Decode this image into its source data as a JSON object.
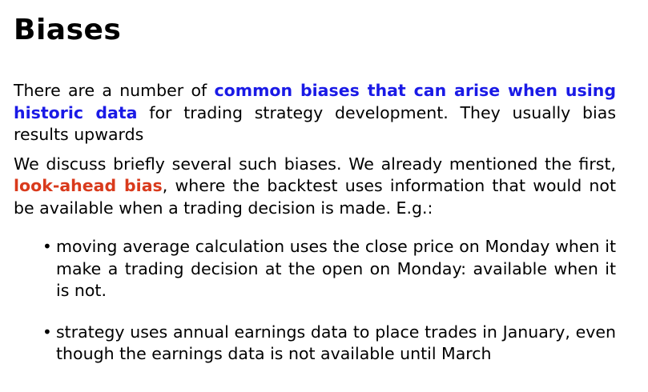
{
  "slide": {
    "title": "Biases",
    "para1": {
      "before": "There are a number of ",
      "highlight": "common biases that can arise when using historic data",
      "after": " for trading strategy development. They usually bias results upwards"
    },
    "para2": {
      "before": "We discuss briefly several such biases. We already mentioned the first, ",
      "highlight": "look-ahead bias",
      "after": ", where the backtest uses information that would not be available when a trading decision is made. E.g.:"
    },
    "bullets": [
      {
        "symbol": "•",
        "text": "moving average calculation uses the close price on Monday when it make a trading decision at the open on Monday: available when it is not."
      },
      {
        "symbol": "•",
        "text": "strategy uses annual earnings data to place trades in January, even though the earnings data is not available until March"
      }
    ]
  },
  "colors": {
    "highlight_blue": "#1a1ae6",
    "highlight_red": "#d93a1c",
    "text": "#000000",
    "background": "#ffffff"
  }
}
